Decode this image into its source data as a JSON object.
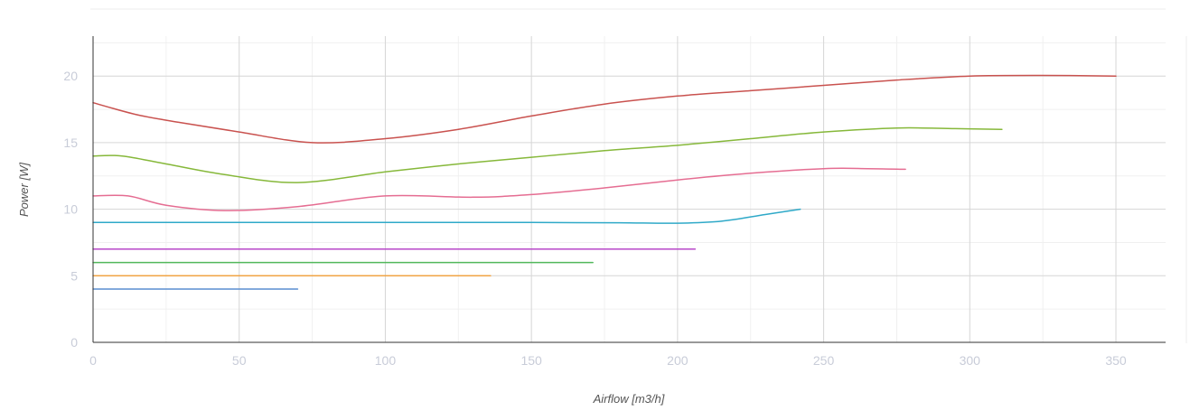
{
  "chart_data": {
    "type": "line",
    "title": "",
    "xlabel": "Airflow [m3/h]",
    "ylabel": "Power [W]",
    "xlim": [
      0,
      367
    ],
    "ylim": [
      0,
      23
    ],
    "x_ticks": [
      0,
      50,
      100,
      150,
      200,
      250,
      300,
      350
    ],
    "y_ticks": [
      0,
      5,
      10,
      15,
      20
    ],
    "x_tick_labels": [
      "0",
      "50",
      "100",
      "150",
      "200",
      "250",
      "300",
      "350"
    ],
    "y_tick_labels": [
      "0",
      "5",
      "10",
      "15",
      "20"
    ],
    "x_minor_step": 25,
    "y_minor_step": 2.5,
    "grid": true,
    "legend": "none",
    "series": [
      {
        "color": "#c9524f",
        "x": [
          0,
          15,
          30,
          50,
          75,
          100,
          125,
          150,
          175,
          200,
          225,
          250,
          275,
          300,
          325,
          350
        ],
        "y": [
          18,
          17.1,
          16.5,
          15.8,
          15.0,
          15.3,
          16.0,
          17.0,
          17.9,
          18.5,
          18.9,
          19.3,
          19.7,
          20.0,
          20.05,
          20.0
        ]
      },
      {
        "color": "#86b83a",
        "x": [
          0,
          10,
          25,
          45,
          70,
          100,
          125,
          150,
          175,
          200,
          225,
          250,
          275,
          295,
          311
        ],
        "y": [
          14,
          14.0,
          13.4,
          12.6,
          12.0,
          12.8,
          13.4,
          13.9,
          14.4,
          14.8,
          15.3,
          15.8,
          16.1,
          16.05,
          16.0
        ]
      },
      {
        "color": "#e56d92",
        "x": [
          0,
          12,
          25,
          45,
          70,
          100,
          130,
          150,
          175,
          200,
          225,
          250,
          265,
          278
        ],
        "y": [
          11,
          11.0,
          10.3,
          9.9,
          10.2,
          11.0,
          10.9,
          11.1,
          11.6,
          12.2,
          12.7,
          13.05,
          13.05,
          13.0
        ]
      },
      {
        "color": "#2fa9c8",
        "x": [
          0,
          50,
          100,
          150,
          180,
          200,
          215,
          230,
          242
        ],
        "y": [
          9,
          9,
          9,
          9,
          8.98,
          8.95,
          9.1,
          9.6,
          10.0
        ]
      },
      {
        "color": "#b847c9",
        "x": [
          0,
          206
        ],
        "y": [
          7,
          7
        ]
      },
      {
        "color": "#52b85b",
        "x": [
          0,
          171
        ],
        "y": [
          6,
          6
        ]
      },
      {
        "color": "#f0a444",
        "x": [
          0,
          136
        ],
        "y": [
          5,
          5
        ]
      },
      {
        "color": "#5a8ed0",
        "x": [
          0,
          70
        ],
        "y": [
          4,
          4
        ]
      }
    ]
  }
}
